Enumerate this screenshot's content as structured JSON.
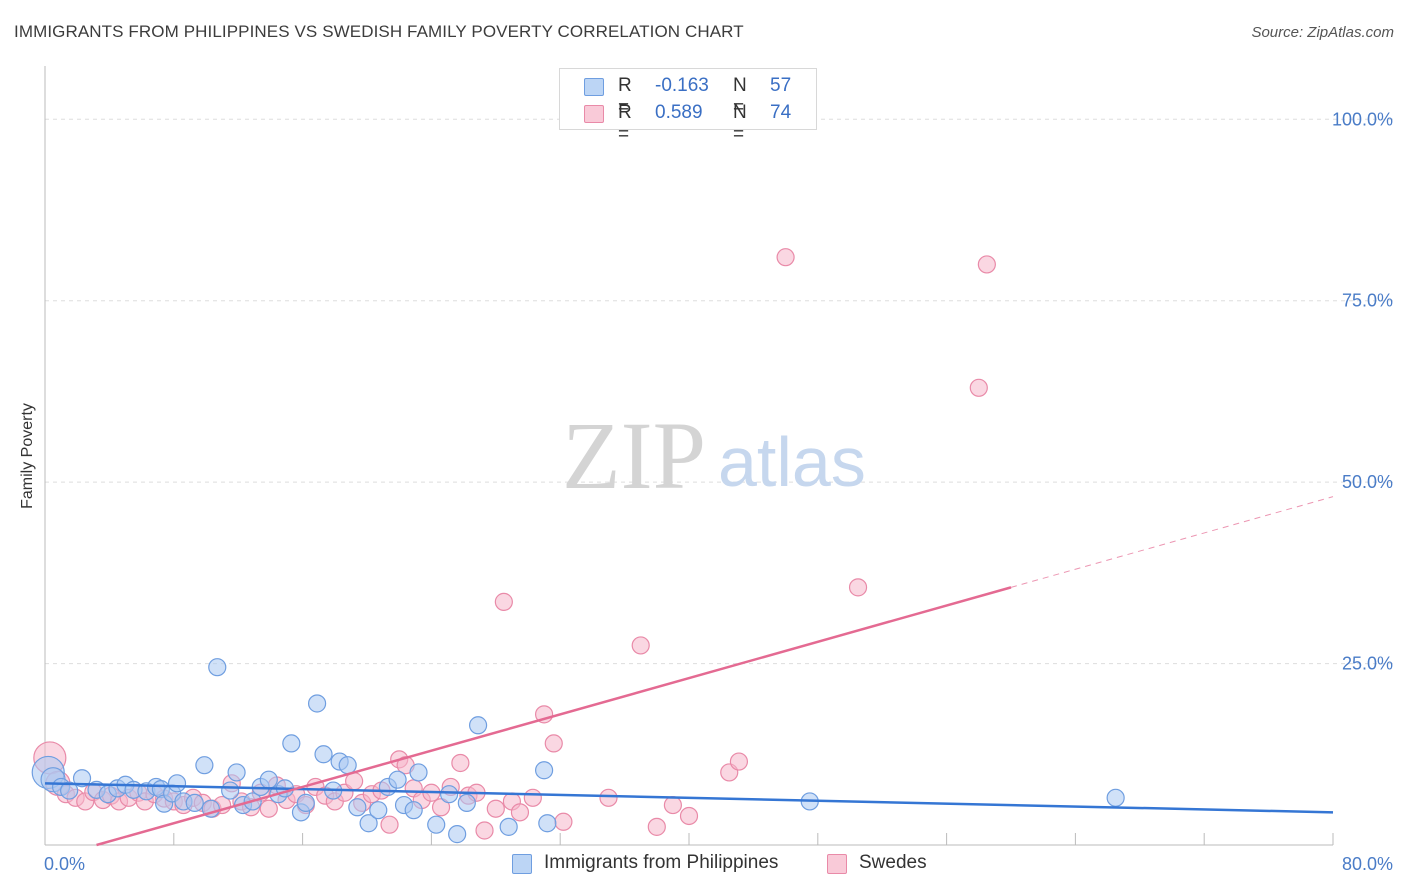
{
  "header": {
    "title": "IMMIGRANTS FROM PHILIPPINES VS SWEDISH FAMILY POVERTY CORRELATION CHART",
    "source": "Source: ZipAtlas.com"
  },
  "watermark": {
    "zip": "ZIP",
    "atlas": "atlas"
  },
  "stats_legend": [
    {
      "r_label": "R =",
      "r_value": "-0.163",
      "n_label": "N =",
      "n_value": "57"
    },
    {
      "r_label": "R =",
      "r_value": "0.589",
      "n_label": "N =",
      "n_value": "74"
    }
  ],
  "colors": {
    "blue_fill": "#a9c8f2",
    "blue_stroke": "#6f9ee0",
    "blue_line": "#3576d4",
    "pink_fill": "#f6b7ca",
    "pink_stroke": "#e98aa8",
    "pink_line": "#e46a92",
    "grid": "#dddddd",
    "tick_text": "#4a7cc7"
  },
  "chart_data": {
    "type": "scatter",
    "title": "IMMIGRANTS FROM PHILIPPINES VS SWEDISH FAMILY POVERTY CORRELATION CHART",
    "xlabel": "",
    "ylabel": "Family Poverty",
    "xlim": [
      0,
      80
    ],
    "ylim": [
      0,
      105
    ],
    "x_tick_labels": [
      {
        "value": 0,
        "label": "0.0%"
      },
      {
        "value": 80,
        "label": "80.0%"
      }
    ],
    "y_tick_labels": [
      {
        "value": 25,
        "label": "25.0%"
      },
      {
        "value": 50,
        "label": "50.0%"
      },
      {
        "value": 75,
        "label": "75.0%"
      },
      {
        "value": 100,
        "label": "100.0%"
      }
    ],
    "grid": true,
    "legend_position": "bottom-center",
    "series": [
      {
        "name": "Immigrants from Philippines",
        "color": "blue",
        "r": -0.163,
        "n": 57,
        "trend": {
          "x_start": 0,
          "y_start": 8.5,
          "x_end": 80,
          "y_end": 4.5
        },
        "points": [
          [
            0.2,
            10.0,
            "L"
          ],
          [
            0.5,
            9.0,
            "M"
          ],
          [
            1.0,
            8.0
          ],
          [
            1.5,
            7.5
          ],
          [
            2.3,
            9.2
          ],
          [
            3.2,
            7.6
          ],
          [
            3.9,
            7.0
          ],
          [
            4.5,
            7.8
          ],
          [
            5.0,
            8.3
          ],
          [
            5.5,
            7.6
          ],
          [
            6.3,
            7.4
          ],
          [
            6.9,
            8.0
          ],
          [
            7.2,
            7.7
          ],
          [
            7.4,
            5.7
          ],
          [
            7.9,
            7.1
          ],
          [
            8.2,
            8.5
          ],
          [
            8.6,
            6.0
          ],
          [
            9.3,
            5.8
          ],
          [
            9.9,
            11.0
          ],
          [
            10.3,
            5.0
          ],
          [
            10.7,
            24.5
          ],
          [
            11.5,
            7.5
          ],
          [
            11.9,
            10.0
          ],
          [
            12.3,
            5.5
          ],
          [
            12.9,
            6.0
          ],
          [
            13.4,
            8.0
          ],
          [
            13.9,
            9.0
          ],
          [
            14.5,
            7.0
          ],
          [
            14.9,
            7.8
          ],
          [
            15.3,
            14.0
          ],
          [
            15.9,
            4.5
          ],
          [
            16.2,
            5.8
          ],
          [
            16.9,
            19.5
          ],
          [
            17.3,
            12.5
          ],
          [
            17.9,
            7.5
          ],
          [
            18.3,
            11.5
          ],
          [
            18.8,
            11.0
          ],
          [
            19.4,
            5.2
          ],
          [
            20.1,
            3.0
          ],
          [
            20.7,
            4.8
          ],
          [
            21.3,
            8.0
          ],
          [
            21.9,
            9.0
          ],
          [
            22.3,
            5.5
          ],
          [
            22.9,
            4.8
          ],
          [
            23.2,
            10.0
          ],
          [
            24.3,
            2.8
          ],
          [
            25.1,
            7.0
          ],
          [
            25.6,
            1.5
          ],
          [
            26.2,
            5.8
          ],
          [
            26.9,
            16.5
          ],
          [
            28.8,
            2.5
          ],
          [
            31.0,
            10.3
          ],
          [
            31.2,
            3.0
          ],
          [
            47.5,
            6.0
          ],
          [
            66.5,
            6.5
          ]
        ]
      },
      {
        "name": "Swedes",
        "color": "pink",
        "r": 0.589,
        "n": 74,
        "trend": {
          "x_start": 0,
          "y_start": -2,
          "x_end": 60,
          "y_end": 35.5,
          "dashed_to_x": 80,
          "dashed_to_y": 48.0
        },
        "points": [
          [
            0.3,
            12.0,
            "L"
          ],
          [
            0.8,
            8.5,
            "M"
          ],
          [
            1.3,
            7.0
          ],
          [
            1.9,
            6.5
          ],
          [
            2.5,
            6.0
          ],
          [
            3.0,
            7.3
          ],
          [
            3.6,
            6.2
          ],
          [
            4.1,
            6.8
          ],
          [
            4.6,
            6.0
          ],
          [
            5.2,
            6.5
          ],
          [
            5.8,
            7.2
          ],
          [
            6.2,
            6.0
          ],
          [
            6.8,
            7.0
          ],
          [
            7.4,
            6.4
          ],
          [
            8.0,
            6.0
          ],
          [
            8.6,
            5.5
          ],
          [
            9.2,
            6.5
          ],
          [
            9.8,
            5.8
          ],
          [
            10.4,
            5.0
          ],
          [
            11.0,
            5.5
          ],
          [
            11.6,
            8.5
          ],
          [
            12.2,
            6.0
          ],
          [
            12.8,
            5.2
          ],
          [
            13.4,
            7.2
          ],
          [
            13.9,
            5.0
          ],
          [
            14.4,
            8.2
          ],
          [
            15.0,
            6.2
          ],
          [
            15.6,
            7.0
          ],
          [
            16.2,
            5.5
          ],
          [
            16.8,
            8.0
          ],
          [
            17.4,
            6.8
          ],
          [
            18.0,
            6.0
          ],
          [
            18.6,
            7.2
          ],
          [
            19.2,
            8.8
          ],
          [
            19.7,
            5.8
          ],
          [
            20.3,
            7.0
          ],
          [
            20.9,
            7.5
          ],
          [
            21.4,
            2.8
          ],
          [
            22.0,
            11.8
          ],
          [
            22.4,
            11.0
          ],
          [
            22.9,
            7.8
          ],
          [
            23.4,
            6.2
          ],
          [
            24.0,
            7.2
          ],
          [
            24.6,
            5.2
          ],
          [
            25.2,
            8.0
          ],
          [
            25.8,
            11.3
          ],
          [
            26.3,
            6.8
          ],
          [
            26.8,
            7.2
          ],
          [
            27.3,
            2.0
          ],
          [
            28.0,
            5.0
          ],
          [
            28.5,
            33.5
          ],
          [
            29.0,
            6.0
          ],
          [
            29.5,
            4.5
          ],
          [
            30.3,
            6.5
          ],
          [
            31.0,
            18.0
          ],
          [
            31.6,
            14.0
          ],
          [
            32.2,
            3.2
          ],
          [
            35.0,
            6.5
          ],
          [
            37.0,
            27.5
          ],
          [
            38.0,
            2.5
          ],
          [
            39.0,
            5.5
          ],
          [
            40.0,
            4.0
          ],
          [
            42.5,
            10.0
          ],
          [
            43.1,
            11.5
          ],
          [
            46.0,
            81.0
          ],
          [
            50.5,
            35.5
          ],
          [
            58.0,
            63.0
          ],
          [
            58.5,
            80.0
          ]
        ]
      }
    ]
  },
  "bottom_legend": [
    {
      "label": "Immigrants from Philippines"
    },
    {
      "label": "Swedes"
    }
  ]
}
